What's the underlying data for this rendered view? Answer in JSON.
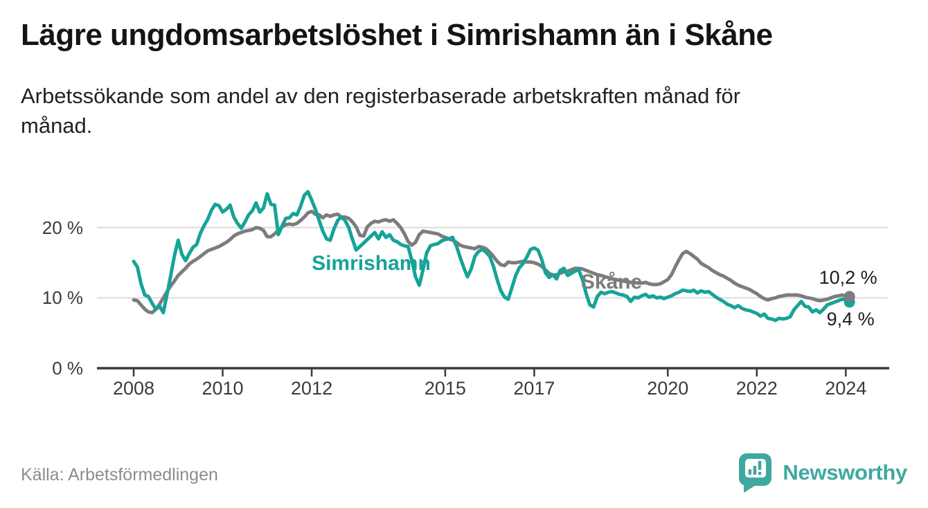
{
  "header": {
    "title": "Lägre ungdomsarbetslöshet i Simrishamn än i Skåne",
    "subtitle": "Arbetssökande som andel av den registerbaserade arbetskraften månad för\nmånad."
  },
  "colors": {
    "simrishamn": "#16a398",
    "skane": "#7c7c7c",
    "grid": "#dcdcdc",
    "axis": "#3a3a3a",
    "tick_text": "#3b3b3b",
    "title_text": "#141414",
    "muted_text": "#8c8c8c",
    "brand_teal": "#3fa8a1",
    "end_label_text": "#1d1d1d"
  },
  "chart_data": {
    "type": "line",
    "unit": "%",
    "x_interval": "monthly",
    "x_start_year": 2008.0,
    "x_end_year": 2024.083,
    "x_ticks": [
      "2008",
      "2010",
      "2012",
      "2015",
      "2017",
      "2020",
      "2022",
      "2024"
    ],
    "x_tick_years": [
      2008,
      2010,
      2012,
      2015,
      2017,
      2020,
      2022,
      2024
    ],
    "y_ticks": [
      "0 %",
      "10 %",
      "20 %"
    ],
    "y_tick_values": [
      0,
      10,
      20
    ],
    "y_range": [
      0,
      26.5
    ],
    "grid": "horizontal-only",
    "legend": "inline-series-labels",
    "series": [
      {
        "name": "Simrishamn",
        "color": "#16a398",
        "end_label": "9,4 %",
        "end_value": 9.4,
        "label_at": {
          "year": 2012.0,
          "value": 16.5
        },
        "values": [
          15.2,
          14.4,
          12.0,
          10.4,
          10.2,
          9.2,
          8.4,
          8.8,
          7.9,
          10.5,
          13.2,
          16.0,
          18.2,
          16.2,
          15.3,
          16.3,
          17.2,
          17.6,
          19.2,
          20.3,
          21.2,
          22.5,
          23.3,
          23.1,
          22.2,
          22.6,
          23.2,
          21.5,
          20.6,
          19.9,
          20.8,
          21.8,
          22.4,
          23.5,
          22.2,
          22.8,
          24.8,
          23.3,
          23.2,
          19.0,
          20.2,
          21.3,
          21.4,
          22.0,
          21.8,
          23.0,
          24.6,
          25.1,
          23.9,
          22.6,
          21.0,
          19.5,
          18.4,
          18.2,
          19.8,
          21.0,
          21.5,
          21.0,
          20.0,
          18.3,
          16.8,
          17.3,
          17.8,
          18.3,
          18.8,
          19.3,
          18.4,
          19.4,
          18.6,
          19.0,
          18.2,
          18.0,
          17.6,
          17.4,
          17.3,
          15.3,
          13.0,
          11.8,
          14.0,
          16.4,
          17.4,
          17.6,
          17.7,
          18.1,
          18.3,
          18.4,
          18.6,
          17.4,
          15.8,
          14.3,
          13.0,
          14.1,
          15.9,
          16.6,
          16.9,
          16.5,
          15.9,
          14.5,
          12.6,
          11.0,
          10.1,
          9.8,
          11.5,
          13.2,
          14.3,
          14.9,
          15.8,
          16.9,
          17.1,
          16.8,
          15.5,
          13.6,
          12.9,
          13.3,
          12.7,
          13.9,
          14.2,
          13.2,
          13.5,
          13.8,
          14.0,
          12.6,
          10.6,
          9.0,
          8.7,
          10.2,
          10.8,
          10.6,
          10.8,
          10.9,
          10.7,
          10.5,
          10.4,
          10.2,
          9.5,
          10.1,
          10.0,
          10.3,
          10.5,
          10.1,
          10.3,
          10.0,
          10.1,
          9.9,
          10.1,
          10.3,
          10.6,
          10.8,
          11.1,
          11.0,
          10.9,
          11.1,
          10.7,
          11.0,
          10.8,
          10.9,
          10.5,
          10.1,
          9.8,
          9.5,
          9.1,
          8.9,
          8.6,
          8.9,
          8.5,
          8.3,
          8.2,
          8.0,
          7.8,
          7.4,
          7.7,
          7.1,
          7.0,
          6.8,
          7.1,
          7.0,
          7.1,
          7.3,
          8.3,
          8.9,
          9.5,
          8.8,
          8.7,
          8.0,
          8.3,
          7.9,
          8.4,
          9.0,
          9.2,
          9.4,
          9.6,
          9.8,
          9.8,
          9.4
        ]
      },
      {
        "name": "Skåne",
        "color": "#7c7c7c",
        "end_label": "10,2 %",
        "end_value": 10.2,
        "label_at": {
          "year": 2018.05,
          "value": 13.85
        },
        "values": [
          9.7,
          9.6,
          9.0,
          8.4,
          8.0,
          7.9,
          8.4,
          9.1,
          10.0,
          10.9,
          11.7,
          12.4,
          13.2,
          13.7,
          14.2,
          14.8,
          15.2,
          15.5,
          15.9,
          16.3,
          16.7,
          16.9,
          17.1,
          17.3,
          17.6,
          17.9,
          18.3,
          18.8,
          19.1,
          19.3,
          19.5,
          19.6,
          19.7,
          20.0,
          19.9,
          19.6,
          18.7,
          18.7,
          19.1,
          19.6,
          20.1,
          20.4,
          20.5,
          20.4,
          20.6,
          21.0,
          21.5,
          22.1,
          22.3,
          21.9,
          21.8,
          21.4,
          21.8,
          21.6,
          21.8,
          21.9,
          21.5,
          21.5,
          21.3,
          20.8,
          20.1,
          18.9,
          18.8,
          20.1,
          20.6,
          20.9,
          20.8,
          21.0,
          21.1,
          20.9,
          21.1,
          20.6,
          20.0,
          19.1,
          18.0,
          17.5,
          17.9,
          19.0,
          19.5,
          19.4,
          19.3,
          19.2,
          19.1,
          18.8,
          18.6,
          18.4,
          18.2,
          17.9,
          17.5,
          17.3,
          17.2,
          17.1,
          17.0,
          17.3,
          17.2,
          17.0,
          16.5,
          15.9,
          15.2,
          14.7,
          14.6,
          15.1,
          15.0,
          15.0,
          15.1,
          15.2,
          15.1,
          15.1,
          15.0,
          14.8,
          14.5,
          14.0,
          13.5,
          13.2,
          13.3,
          13.5,
          13.7,
          13.8,
          14.0,
          14.2,
          14.2,
          14.1,
          13.9,
          13.7,
          13.5,
          13.3,
          13.2,
          13.0,
          12.9,
          12.7,
          12.6,
          12.5,
          12.4,
          12.3,
          12.2,
          12.2,
          12.1,
          12.1,
          12.2,
          12.0,
          11.9,
          11.9,
          12.0,
          12.3,
          12.6,
          13.3,
          14.4,
          15.4,
          16.3,
          16.6,
          16.3,
          15.9,
          15.5,
          14.9,
          14.6,
          14.3,
          13.9,
          13.6,
          13.3,
          13.1,
          12.8,
          12.5,
          12.1,
          11.8,
          11.6,
          11.4,
          11.2,
          10.9,
          10.6,
          10.2,
          9.9,
          9.7,
          9.9,
          10.0,
          10.2,
          10.3,
          10.4,
          10.4,
          10.4,
          10.4,
          10.3,
          10.1,
          10.0,
          9.9,
          9.7,
          9.6,
          9.7,
          9.8,
          10.0,
          10.2,
          10.3,
          10.4,
          10.3,
          10.2
        ]
      }
    ]
  },
  "footer": {
    "source": "Källa: Arbetsförmedlingen",
    "brand": "Newsworthy"
  }
}
